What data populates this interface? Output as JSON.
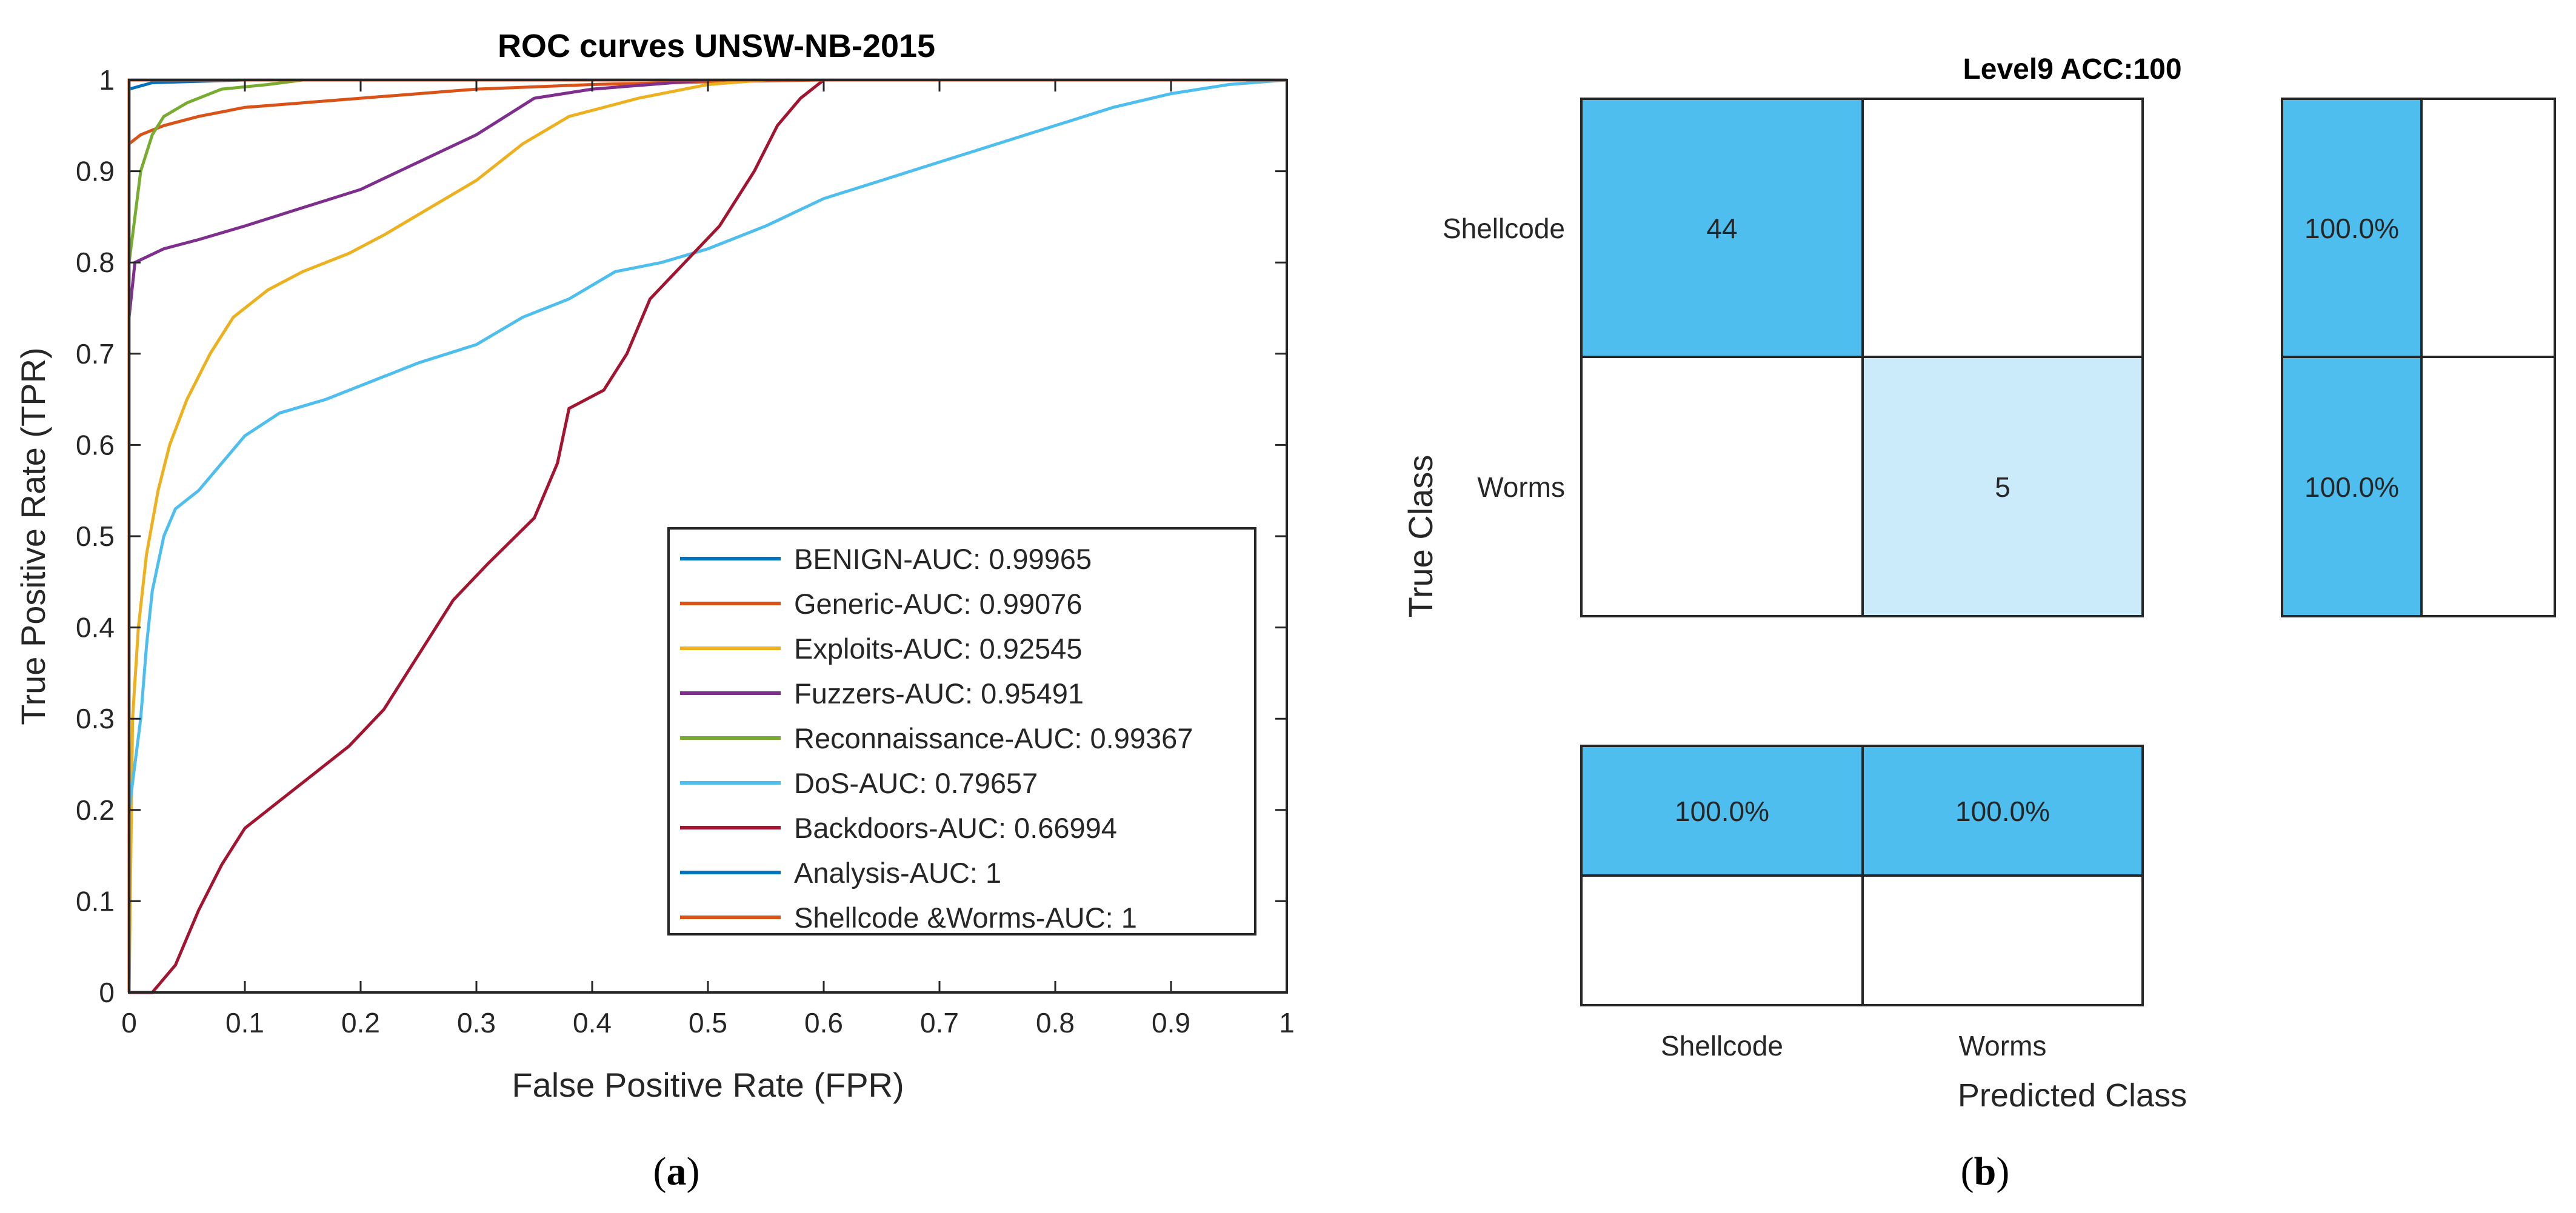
{
  "chart_data": [
    {
      "panel": "(a)",
      "type": "line",
      "title": "ROC curves UNSW-NB-2015",
      "xlabel": "False Positive Rate (FPR)",
      "ylabel": "True Positive Rate (TPR)",
      "xlim": [
        0,
        1
      ],
      "ylim": [
        0,
        1
      ],
      "xticks": [
        "0",
        "0.1",
        "0.2",
        "0.3",
        "0.4",
        "0.5",
        "0.6",
        "0.7",
        "0.8",
        "0.9",
        "1"
      ],
      "yticks": [
        "0",
        "0.1",
        "0.2",
        "0.3",
        "0.4",
        "0.5",
        "0.6",
        "0.7",
        "0.8",
        "0.9",
        "1"
      ],
      "grid": false,
      "legend_position": "bottom-right",
      "series": [
        {
          "name": "BENIGN-AUC: 0.99965",
          "color": "#0072BD",
          "points": [
            [
              0,
              0
            ],
            [
              0.0,
              0.99
            ],
            [
              0.02,
              0.997
            ],
            [
              0.1,
              1
            ],
            [
              1,
              1
            ]
          ]
        },
        {
          "name": "Generic-AUC: 0.99076",
          "color": "#D95319",
          "points": [
            [
              0,
              0
            ],
            [
              0.0,
              0.93
            ],
            [
              0.01,
              0.94
            ],
            [
              0.03,
              0.95
            ],
            [
              0.06,
              0.96
            ],
            [
              0.1,
              0.97
            ],
            [
              0.15,
              0.975
            ],
            [
              0.2,
              0.98
            ],
            [
              0.25,
              0.985
            ],
            [
              0.3,
              0.99
            ],
            [
              0.4,
              0.995
            ],
            [
              0.5,
              0.998
            ],
            [
              0.6,
              1
            ],
            [
              1,
              1
            ]
          ]
        },
        {
          "name": "Exploits-AUC: 0.92545",
          "color": "#EDB120",
          "points": [
            [
              0,
              0
            ],
            [
              0.003,
              0.3
            ],
            [
              0.008,
              0.4
            ],
            [
              0.015,
              0.48
            ],
            [
              0.025,
              0.55
            ],
            [
              0.035,
              0.6
            ],
            [
              0.05,
              0.65
            ],
            [
              0.07,
              0.7
            ],
            [
              0.09,
              0.74
            ],
            [
              0.12,
              0.77
            ],
            [
              0.15,
              0.79
            ],
            [
              0.19,
              0.81
            ],
            [
              0.22,
              0.83
            ],
            [
              0.26,
              0.86
            ],
            [
              0.3,
              0.89
            ],
            [
              0.34,
              0.93
            ],
            [
              0.38,
              0.96
            ],
            [
              0.44,
              0.98
            ],
            [
              0.5,
              0.995
            ],
            [
              0.55,
              1
            ],
            [
              1,
              1
            ]
          ]
        },
        {
          "name": "Fuzzers-AUC: 0.95491",
          "color": "#7E2F8E",
          "points": [
            [
              0,
              0
            ],
            [
              0.0,
              0.74
            ],
            [
              0.005,
              0.8
            ],
            [
              0.03,
              0.815
            ],
            [
              0.06,
              0.825
            ],
            [
              0.1,
              0.84
            ],
            [
              0.15,
              0.86
            ],
            [
              0.2,
              0.88
            ],
            [
              0.25,
              0.91
            ],
            [
              0.3,
              0.94
            ],
            [
              0.35,
              0.98
            ],
            [
              0.4,
              0.99
            ],
            [
              0.5,
              1
            ],
            [
              1,
              1
            ]
          ]
        },
        {
          "name": "Reconnaissance-AUC: 0.99367",
          "color": "#77AC30",
          "points": [
            [
              0,
              0
            ],
            [
              0.0,
              0.8
            ],
            [
              0.005,
              0.85
            ],
            [
              0.01,
              0.9
            ],
            [
              0.02,
              0.94
            ],
            [
              0.03,
              0.96
            ],
            [
              0.05,
              0.975
            ],
            [
              0.08,
              0.99
            ],
            [
              0.12,
              0.995
            ],
            [
              0.15,
              1
            ],
            [
              1,
              1
            ]
          ]
        },
        {
          "name": "DoS-AUC: 0.79657",
          "color": "#4DBEEE",
          "points": [
            [
              0,
              0
            ],
            [
              0.0,
              0.2
            ],
            [
              0.01,
              0.3
            ],
            [
              0.015,
              0.38
            ],
            [
              0.02,
              0.44
            ],
            [
              0.03,
              0.5
            ],
            [
              0.04,
              0.53
            ],
            [
              0.06,
              0.55
            ],
            [
              0.08,
              0.58
            ],
            [
              0.1,
              0.61
            ],
            [
              0.13,
              0.635
            ],
            [
              0.17,
              0.65
            ],
            [
              0.21,
              0.67
            ],
            [
              0.25,
              0.69
            ],
            [
              0.3,
              0.71
            ],
            [
              0.34,
              0.74
            ],
            [
              0.38,
              0.76
            ],
            [
              0.42,
              0.79
            ],
            [
              0.46,
              0.8
            ],
            [
              0.5,
              0.815
            ],
            [
              0.55,
              0.84
            ],
            [
              0.6,
              0.87
            ],
            [
              0.65,
              0.89
            ],
            [
              0.7,
              0.91
            ],
            [
              0.75,
              0.93
            ],
            [
              0.8,
              0.95
            ],
            [
              0.85,
              0.97
            ],
            [
              0.9,
              0.985
            ],
            [
              0.95,
              0.995
            ],
            [
              1,
              1
            ]
          ]
        },
        {
          "name": "Backdoors-AUC: 0.66994",
          "color": "#A2142F",
          "points": [
            [
              0,
              0
            ],
            [
              0.02,
              0.0
            ],
            [
              0.04,
              0.03
            ],
            [
              0.06,
              0.09
            ],
            [
              0.08,
              0.14
            ],
            [
              0.1,
              0.18
            ],
            [
              0.13,
              0.21
            ],
            [
              0.16,
              0.24
            ],
            [
              0.19,
              0.27
            ],
            [
              0.22,
              0.31
            ],
            [
              0.25,
              0.37
            ],
            [
              0.28,
              0.43
            ],
            [
              0.31,
              0.47
            ],
            [
              0.35,
              0.52
            ],
            [
              0.37,
              0.58
            ],
            [
              0.38,
              0.64
            ],
            [
              0.41,
              0.66
            ],
            [
              0.43,
              0.7
            ],
            [
              0.45,
              0.76
            ],
            [
              0.48,
              0.8
            ],
            [
              0.51,
              0.84
            ],
            [
              0.54,
              0.9
            ],
            [
              0.56,
              0.95
            ],
            [
              0.58,
              0.98
            ],
            [
              0.6,
              1
            ],
            [
              1,
              1
            ]
          ]
        },
        {
          "name": "Analysis-AUC: 1",
          "color": "#0072BD",
          "points": [
            [
              0,
              0
            ],
            [
              0,
              1
            ],
            [
              1,
              1
            ]
          ]
        },
        {
          "name": "Shellcode &Worms-AUC: 1",
          "color": "#D95319",
          "points": [
            [
              0,
              0
            ],
            [
              0,
              1
            ],
            [
              1,
              1
            ]
          ]
        }
      ],
      "caption": "(a)"
    },
    {
      "panel": "(b)",
      "type": "heatmap",
      "title": "Level9 ACC:100",
      "xlabel": "Predicted Class",
      "ylabel": "True Class",
      "row_labels": [
        "Shellcode",
        "Worms"
      ],
      "col_labels": [
        "Shellcode",
        "Worms"
      ],
      "matrix": [
        [
          "44",
          ""
        ],
        [
          "",
          "5"
        ]
      ],
      "row_summary": [
        "100.0%",
        "100.0%"
      ],
      "col_summary": [
        "100.0%",
        "100.0%"
      ],
      "colors": {
        "dark": "#4DBEEE",
        "light": "#CBEBFB"
      },
      "caption": "(b)"
    }
  ]
}
